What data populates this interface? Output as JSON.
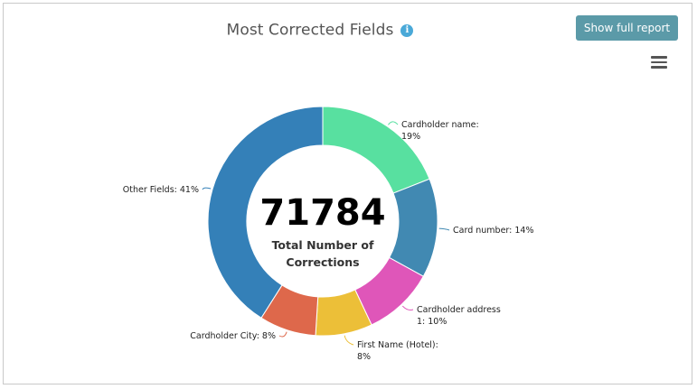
{
  "header": {
    "title": "Most Corrected Fields",
    "info_icon": "info-icon",
    "report_button": "Show full report",
    "menu_icon": "hamburger-menu-icon"
  },
  "center": {
    "total": "71784",
    "caption_line1": "Total Number of",
    "caption_line2": "Corrections"
  },
  "chart_data": {
    "type": "pie",
    "variant": "donut",
    "title": "Most Corrected Fields",
    "slices": [
      {
        "name": "Cardholder name",
        "value": 19,
        "color": "#58e0a0",
        "label_lines": [
          "Cardholder name:",
          "19%"
        ]
      },
      {
        "name": "Card number",
        "value": 14,
        "color": "#4189b2",
        "label_lines": [
          "Card number: 14%"
        ]
      },
      {
        "name": "Cardholder address 1",
        "value": 10,
        "color": "#df56b9",
        "label_lines": [
          "Cardholder address",
          "1: 10%"
        ]
      },
      {
        "name": "First Name (Hotel)",
        "value": 8,
        "color": "#ecbf38",
        "label_lines": [
          "First Name (Hotel):",
          "8%"
        ]
      },
      {
        "name": "Cardholder City",
        "value": 8,
        "color": "#de684b",
        "label_lines": [
          "Cardholder City: 8%"
        ]
      },
      {
        "name": "Other Fields",
        "value": 41,
        "color": "#3480b8",
        "label_lines": [
          "Other Fields: 41%"
        ]
      }
    ]
  }
}
